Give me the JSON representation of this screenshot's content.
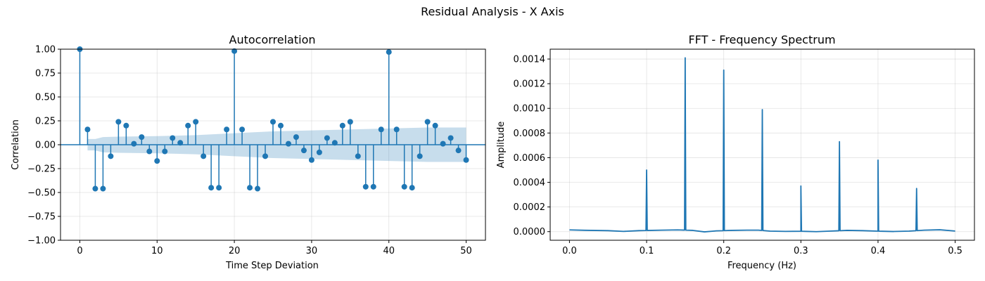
{
  "figure": {
    "suptitle": "Residual Analysis - X Axis",
    "series_color": "#1f77b4"
  },
  "chart_data": [
    {
      "type": "stem",
      "title": "Autocorrelation",
      "xlabel": "Time Step Deviation",
      "ylabel": "Correlation",
      "xlim": [
        -2.5,
        52.5
      ],
      "ylim": [
        -1.0,
        1.0
      ],
      "x_ticks": [
        0,
        10,
        20,
        30,
        40,
        50
      ],
      "y_ticks": [
        -1.0,
        -0.75,
        -0.5,
        -0.25,
        0.0,
        0.25,
        0.5,
        0.75,
        1.0
      ],
      "y_tick_labels": [
        "−1.00",
        "−0.75",
        "−0.50",
        "−0.25",
        "0.00",
        "0.25",
        "0.50",
        "0.75",
        "1.00"
      ],
      "grid": true,
      "lags": [
        0,
        1,
        2,
        3,
        4,
        5,
        6,
        7,
        8,
        9,
        10,
        11,
        12,
        13,
        14,
        15,
        16,
        17,
        18,
        19,
        20,
        21,
        22,
        23,
        24,
        25,
        26,
        27,
        28,
        29,
        30,
        31,
        32,
        33,
        34,
        35,
        36,
        37,
        38,
        39,
        40,
        41,
        42,
        43,
        44,
        45,
        46,
        47,
        48,
        49,
        50
      ],
      "values": [
        1.0,
        0.16,
        -0.46,
        -0.46,
        -0.12,
        0.24,
        0.2,
        0.01,
        0.08,
        -0.07,
        -0.17,
        -0.07,
        0.07,
        0.02,
        0.2,
        0.24,
        -0.12,
        -0.45,
        -0.45,
        0.16,
        0.98,
        0.16,
        -0.45,
        -0.46,
        -0.12,
        0.24,
        0.2,
        0.01,
        0.08,
        -0.06,
        -0.16,
        -0.08,
        0.07,
        0.02,
        0.2,
        0.24,
        -0.12,
        -0.44,
        -0.44,
        0.16,
        0.97,
        0.16,
        -0.44,
        -0.45,
        -0.12,
        0.24,
        0.2,
        0.01,
        0.07,
        -0.06,
        -0.16
      ],
      "confidence_band": {
        "lags": [
          1,
          2,
          3,
          5,
          10,
          15,
          20,
          25,
          30,
          35,
          40,
          45,
          50
        ],
        "upper": [
          0.06,
          0.06,
          0.08,
          0.085,
          0.09,
          0.1,
          0.12,
          0.14,
          0.15,
          0.16,
          0.17,
          0.18,
          0.18
        ],
        "lower": [
          -0.06,
          -0.06,
          -0.08,
          -0.085,
          -0.09,
          -0.1,
          -0.12,
          -0.14,
          -0.15,
          -0.16,
          -0.17,
          -0.18,
          -0.18
        ],
        "color": "#1f77b4",
        "opacity": 0.25
      }
    },
    {
      "type": "line",
      "title": "FFT - Frequency Spectrum",
      "xlabel": "Frequency (Hz)",
      "ylabel": "Amplitude",
      "xlim": [
        -0.025,
        0.525
      ],
      "ylim": [
        -7e-05,
        0.00148
      ],
      "x_ticks": [
        0.0,
        0.1,
        0.2,
        0.3,
        0.4,
        0.5
      ],
      "x_tick_labels": [
        "0.0",
        "0.1",
        "0.2",
        "0.3",
        "0.4",
        "0.5"
      ],
      "y_ticks": [
        0.0,
        0.0002,
        0.0004,
        0.0006,
        0.0008,
        0.001,
        0.0012,
        0.0014
      ],
      "y_tick_labels": [
        "0.0000",
        "0.0002",
        "0.0004",
        "0.0006",
        "0.0008",
        "0.0010",
        "0.0012",
        "0.0014"
      ],
      "grid": true,
      "baseline": [
        [
          0.0,
          1.4e-05
        ],
        [
          0.02,
          1.1e-05
        ],
        [
          0.05,
          8e-06
        ],
        [
          0.07,
          2e-06
        ],
        [
          0.09,
          8e-06
        ],
        [
          0.12,
          1.2e-05
        ],
        [
          0.14,
          1.4e-05
        ],
        [
          0.16,
          1e-05
        ],
        [
          0.175,
          -2e-06
        ],
        [
          0.19,
          6e-06
        ],
        [
          0.21,
          1e-05
        ],
        [
          0.23,
          1.2e-05
        ],
        [
          0.245,
          1.2e-05
        ],
        [
          0.26,
          4e-06
        ],
        [
          0.28,
          2e-06
        ],
        [
          0.3,
          3e-06
        ],
        [
          0.32,
          0.0
        ],
        [
          0.34,
          5e-06
        ],
        [
          0.36,
          1e-05
        ],
        [
          0.38,
          8e-06
        ],
        [
          0.4,
          4e-06
        ],
        [
          0.42,
          1e-06
        ],
        [
          0.44,
          4e-06
        ],
        [
          0.46,
          1.2e-05
        ],
        [
          0.48,
          1.5e-05
        ],
        [
          0.5,
          5e-06
        ]
      ],
      "peaks": [
        {
          "frequency": 0.1,
          "amplitude": 0.0005
        },
        {
          "frequency": 0.15,
          "amplitude": 0.00141
        },
        {
          "frequency": 0.2,
          "amplitude": 0.00131
        },
        {
          "frequency": 0.25,
          "amplitude": 0.00099
        },
        {
          "frequency": 0.3,
          "amplitude": 0.00037
        },
        {
          "frequency": 0.35,
          "amplitude": 0.00073
        },
        {
          "frequency": 0.4,
          "amplitude": 0.00058
        },
        {
          "frequency": 0.45,
          "amplitude": 0.00035
        }
      ]
    }
  ]
}
